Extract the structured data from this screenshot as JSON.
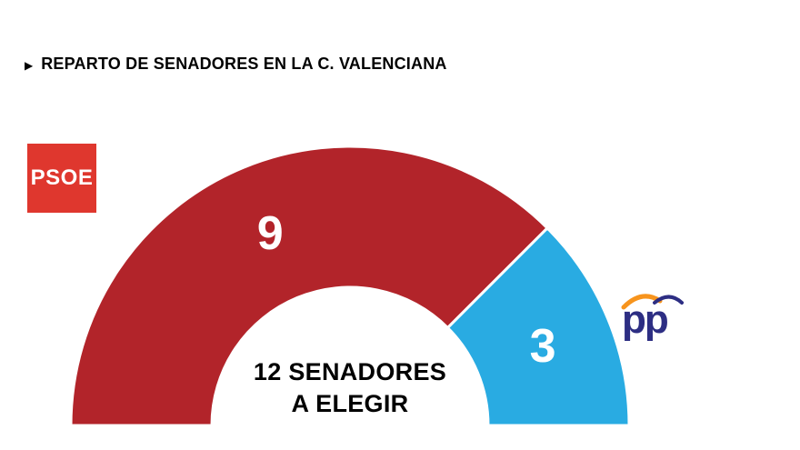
{
  "header": {
    "bullet": "▶",
    "title": "REPARTO DE SENADORES EN LA C. VALENCIANA"
  },
  "chart_data": {
    "type": "pie",
    "variant": "half-donut",
    "title": "REPARTO DE SENADORES EN LA C. VALENCIANA",
    "total": 12,
    "center_label_line1": "12 SENADORES",
    "center_label_line2": "A ELEGIR",
    "legend_position": "on-segments-and-logos",
    "series": [
      {
        "name": "PSOE",
        "value": 9,
        "color": "#b2242a",
        "label_color": "#ffffff"
      },
      {
        "name": "PP",
        "value": 3,
        "color": "#29abe2",
        "label_color": "#ffffff"
      }
    ]
  },
  "logos": {
    "psoe": {
      "text": "PSOE",
      "bg": "#df372e",
      "fg": "#ffffff"
    },
    "pp": {
      "text": "pp",
      "color": "#2d2e83",
      "gull_orange": "#f7941d",
      "gull_blue": "#2d2e83"
    }
  }
}
